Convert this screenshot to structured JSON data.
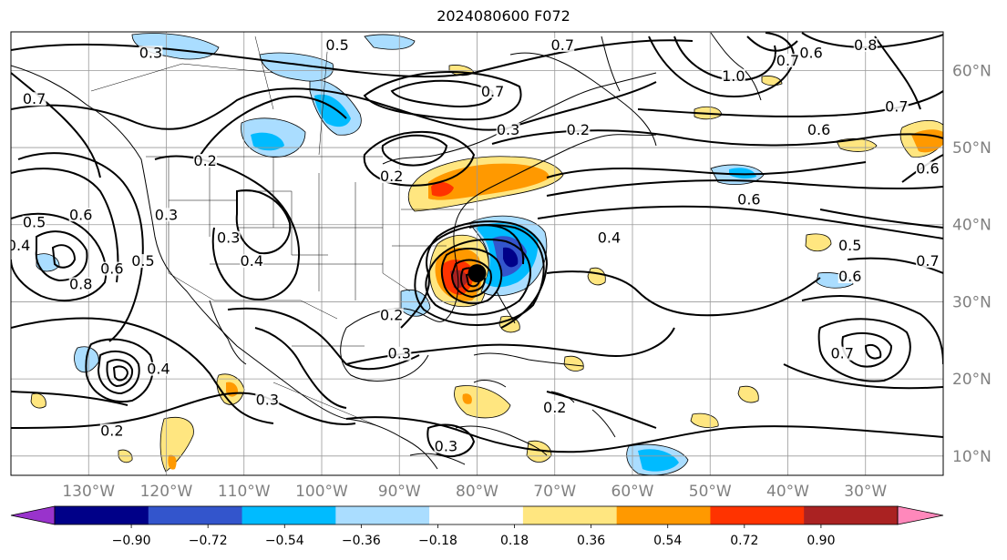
{
  "title": "2024080600 F072",
  "map": {
    "lon_range": [
      -140,
      -20
    ],
    "lat_range": [
      7.5,
      65
    ],
    "lon_ticks": [
      {
        "value": -130,
        "label": "130°W"
      },
      {
        "value": -120,
        "label": "120°W"
      },
      {
        "value": -110,
        "label": "110°W"
      },
      {
        "value": -100,
        "label": "100°W"
      },
      {
        "value": -90,
        "label": "90°W"
      },
      {
        "value": -80,
        "label": "80°W"
      },
      {
        "value": -70,
        "label": "70°W"
      },
      {
        "value": -60,
        "label": "60°W"
      },
      {
        "value": -50,
        "label": "50°W"
      },
      {
        "value": -40,
        "label": "40°W"
      },
      {
        "value": -30,
        "label": "30°W"
      }
    ],
    "lat_ticks": [
      {
        "value": 10,
        "label": "10°N"
      },
      {
        "value": 20,
        "label": "20°N"
      },
      {
        "value": 30,
        "label": "30°N"
      },
      {
        "value": 40,
        "label": "40°N"
      },
      {
        "value": 50,
        "label": "50°N"
      },
      {
        "value": 60,
        "label": "60°N"
      }
    ],
    "storm_center": {
      "lon": -80,
      "lat": 33.7
    }
  },
  "colorbar": {
    "levels": [
      "−0.90",
      "−0.72",
      "−0.54",
      "−0.36",
      "−0.18",
      "0.18",
      "0.36",
      "0.54",
      "0.72",
      "0.90"
    ],
    "under_color": "#9933cc",
    "over_color": "#ff88bb",
    "colors": [
      "#000088",
      "#3355cc",
      "#00bbff",
      "#aaddff",
      "#ffffff",
      "#ffe680",
      "#ff9900",
      "#ff3300",
      "#aa2222"
    ]
  },
  "contour_labels": [
    {
      "text": "0.5",
      "lon": -98,
      "lat": 63
    },
    {
      "text": "0.3",
      "lon": -122,
      "lat": 62
    },
    {
      "text": "0.7",
      "lon": -69,
      "lat": 63
    },
    {
      "text": "0.7",
      "lon": -78,
      "lat": 57
    },
    {
      "text": "0.8",
      "lon": -30,
      "lat": 63
    },
    {
      "text": "0.6",
      "lon": -37,
      "lat": 62
    },
    {
      "text": "0.7",
      "lon": -40,
      "lat": 61
    },
    {
      "text": "1.0",
      "lon": -47,
      "lat": 59
    },
    {
      "text": "0.7",
      "lon": -137,
      "lat": 56
    },
    {
      "text": "0.3",
      "lon": -76,
      "lat": 52
    },
    {
      "text": "0.2",
      "lon": -67,
      "lat": 52
    },
    {
      "text": "0.6",
      "lon": -36,
      "lat": 52
    },
    {
      "text": "0.7",
      "lon": -26,
      "lat": 55
    },
    {
      "text": "0.6",
      "lon": -22,
      "lat": 47
    },
    {
      "text": "0.2",
      "lon": -115,
      "lat": 48
    },
    {
      "text": "0.2",
      "lon": -91,
      "lat": 46
    },
    {
      "text": "0.6",
      "lon": -45,
      "lat": 43
    },
    {
      "text": "0.5",
      "lon": -137,
      "lat": 40
    },
    {
      "text": "0.4",
      "lon": -139,
      "lat": 37
    },
    {
      "text": "0.6",
      "lon": -131,
      "lat": 41
    },
    {
      "text": "0.3",
      "lon": -120,
      "lat": 41
    },
    {
      "text": "0.3",
      "lon": -112,
      "lat": 38
    },
    {
      "text": "0.4",
      "lon": -109,
      "lat": 35
    },
    {
      "text": "0.4",
      "lon": -63,
      "lat": 38
    },
    {
      "text": "0.5",
      "lon": -32,
      "lat": 37
    },
    {
      "text": "0.7",
      "lon": -22,
      "lat": 35
    },
    {
      "text": "0.6",
      "lon": -32,
      "lat": 33
    },
    {
      "text": "0.8",
      "lon": -131,
      "lat": 32
    },
    {
      "text": "0.6",
      "lon": -127,
      "lat": 34
    },
    {
      "text": "0.5",
      "lon": -123,
      "lat": 35
    },
    {
      "text": "0.2",
      "lon": -91,
      "lat": 28
    },
    {
      "text": "0.3",
      "lon": -90,
      "lat": 23
    },
    {
      "text": "0.7",
      "lon": -33,
      "lat": 23
    },
    {
      "text": "0.4",
      "lon": -121,
      "lat": 21
    },
    {
      "text": "0.3",
      "lon": -107,
      "lat": 17
    },
    {
      "text": "0.2",
      "lon": -127,
      "lat": 13
    },
    {
      "text": "0.2",
      "lon": -70,
      "lat": 16
    },
    {
      "text": "0.3",
      "lon": -84,
      "lat": 11
    }
  ]
}
